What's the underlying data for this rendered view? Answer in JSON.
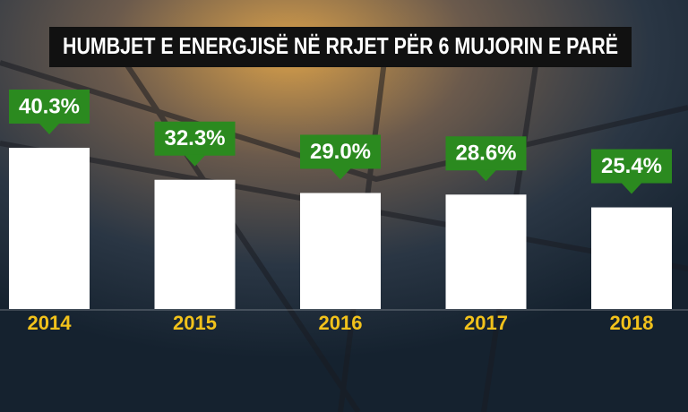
{
  "chart_data": {
    "type": "bar",
    "title": "HUMBJET E ENERGJISË NË RRJET PËR 6 MUJORIN E PARË",
    "categories": [
      "2014",
      "2015",
      "2016",
      "2017",
      "2018"
    ],
    "values": [
      40.3,
      32.3,
      29.0,
      28.6,
      25.4
    ],
    "value_labels": [
      "40.3%",
      "32.3%",
      "29.0%",
      "28.6%",
      "25.4%"
    ],
    "color": "#ffffff",
    "label_color": "#2b8a1f",
    "category_color": "#f2c21b"
  }
}
